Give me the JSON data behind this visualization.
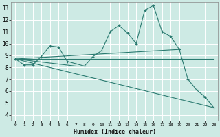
{
  "xlabel": "Humidex (Indice chaleur)",
  "xlim": [
    -0.5,
    23.5
  ],
  "ylim": [
    3.5,
    13.5
  ],
  "xticks": [
    0,
    1,
    2,
    3,
    4,
    5,
    6,
    7,
    8,
    9,
    10,
    11,
    12,
    13,
    14,
    15,
    16,
    17,
    18,
    19,
    20,
    21,
    22,
    23
  ],
  "yticks": [
    4,
    5,
    6,
    7,
    8,
    9,
    10,
    11,
    12,
    13
  ],
  "bg_color": "#cdeae4",
  "line_color": "#2a7a70",
  "grid_color": "#ffffff",
  "series": [
    {
      "x": [
        0,
        1,
        2,
        3,
        4,
        5,
        6,
        7,
        8,
        9,
        10,
        11,
        12,
        13,
        14,
        15,
        16,
        17,
        18,
        19,
        20,
        21,
        22,
        23
      ],
      "y": [
        8.7,
        8.2,
        8.2,
        8.9,
        9.8,
        9.7,
        8.5,
        8.3,
        8.1,
        8.9,
        9.4,
        11.0,
        11.5,
        10.9,
        10.0,
        12.8,
        13.2,
        11.0,
        10.6,
        9.5,
        7.0,
        6.1,
        5.5,
        4.6
      ],
      "has_marker": true
    },
    {
      "x": [
        0,
        23
      ],
      "y": [
        8.7,
        8.7
      ],
      "has_marker": false
    },
    {
      "x": [
        0,
        23
      ],
      "y": [
        8.7,
        4.6
      ],
      "has_marker": false
    },
    {
      "x": [
        0,
        19
      ],
      "y": [
        8.7,
        9.5
      ],
      "has_marker": false
    },
    {
      "x": [
        0,
        7
      ],
      "y": [
        8.7,
        8.1
      ],
      "has_marker": false
    }
  ]
}
